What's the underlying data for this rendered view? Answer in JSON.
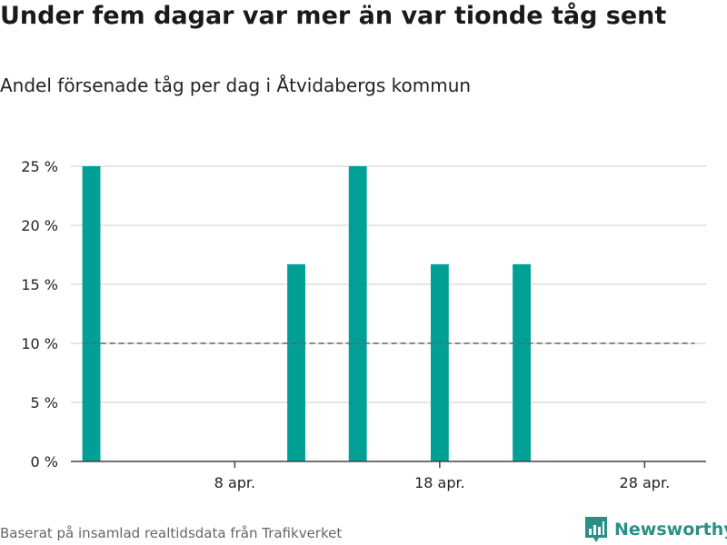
{
  "title": "Under fem dagar var mer än var tionde tåg sent",
  "subtitle": "Andel försenade tåg per dag i Åtvidabergs kommun",
  "source": "Baserat på insamlad realtidsdata från Trafikverket",
  "brand": "Newsworthy",
  "colors": {
    "bar": "#00a096",
    "brand": "#2b8f86",
    "reference": "#666666",
    "grid": "#dddddd"
  },
  "chart_data": {
    "type": "bar",
    "x_axis": {
      "min_date": "2019-03-31",
      "max_date": "2019-05-01",
      "ticks": [
        {
          "date": "2019-04-08",
          "label": "8 apr."
        },
        {
          "date": "2019-04-18",
          "label": "18 apr."
        },
        {
          "date": "2019-04-28",
          "label": "28 apr."
        }
      ]
    },
    "y_axis": {
      "min": 0,
      "max": 25,
      "ticks": [
        {
          "value": 0,
          "label": "0 %"
        },
        {
          "value": 5,
          "label": "5 %"
        },
        {
          "value": 10,
          "label": "10 %"
        },
        {
          "value": 15,
          "label": "15 %"
        },
        {
          "value": 20,
          "label": "20 %"
        },
        {
          "value": 25,
          "label": "25 %"
        }
      ]
    },
    "series": [
      {
        "points": [
          {
            "date": "2019-04-01",
            "value": 25
          },
          {
            "date": "2019-04-02",
            "value": 0
          },
          {
            "date": "2019-04-03",
            "value": 0
          },
          {
            "date": "2019-04-04",
            "value": 0
          },
          {
            "date": "2019-04-05",
            "value": 0
          },
          {
            "date": "2019-04-06",
            "value": 0
          },
          {
            "date": "2019-04-07",
            "value": 0
          },
          {
            "date": "2019-04-08",
            "value": 0
          },
          {
            "date": "2019-04-09",
            "value": 0
          },
          {
            "date": "2019-04-10",
            "value": 0
          },
          {
            "date": "2019-04-11",
            "value": 16.7
          },
          {
            "date": "2019-04-12",
            "value": 0
          },
          {
            "date": "2019-04-13",
            "value": 0
          },
          {
            "date": "2019-04-14",
            "value": 25
          },
          {
            "date": "2019-04-15",
            "value": 0
          },
          {
            "date": "2019-04-16",
            "value": 0
          },
          {
            "date": "2019-04-17",
            "value": 0
          },
          {
            "date": "2019-04-18",
            "value": 16.7
          },
          {
            "date": "2019-04-19",
            "value": 0
          },
          {
            "date": "2019-04-20",
            "value": 0
          },
          {
            "date": "2019-04-21",
            "value": 0
          },
          {
            "date": "2019-04-22",
            "value": 16.7
          },
          {
            "date": "2019-04-23",
            "value": 0
          },
          {
            "date": "2019-04-24",
            "value": 0
          },
          {
            "date": "2019-04-25",
            "value": 0
          },
          {
            "date": "2019-04-26",
            "value": 0
          },
          {
            "date": "2019-04-27",
            "value": 0
          },
          {
            "date": "2019-04-28",
            "value": 0
          },
          {
            "date": "2019-04-29",
            "value": 0
          },
          {
            "date": "2019-04-30",
            "value": 0
          }
        ]
      }
    ],
    "reference_line": {
      "value": 10,
      "style": "dashed",
      "from_date": "2019-04-01",
      "to_date": "2019-04-30"
    },
    "grid": true,
    "legend": false
  }
}
